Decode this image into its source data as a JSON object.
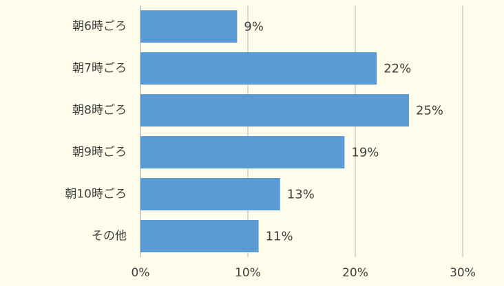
{
  "chart_data": {
    "type": "bar",
    "orientation": "horizontal",
    "categories": [
      "朝6時ごろ",
      "朝7時ごろ",
      "朝8時ごろ",
      "朝9時ごろ",
      "朝10時ごろ",
      "その他"
    ],
    "values": [
      9,
      22,
      25,
      19,
      13,
      11
    ],
    "value_labels": [
      "9%",
      "22%",
      "25%",
      "19%",
      "13%",
      "11%"
    ],
    "color": "#5b9bd5",
    "xlim": [
      0,
      30
    ],
    "xticks": [
      {
        "value": 0,
        "label": "0%"
      },
      {
        "value": 10,
        "label": "10%"
      },
      {
        "value": 20,
        "label": "20%"
      },
      {
        "value": 30,
        "label": "30%"
      }
    ],
    "grid": true
  }
}
